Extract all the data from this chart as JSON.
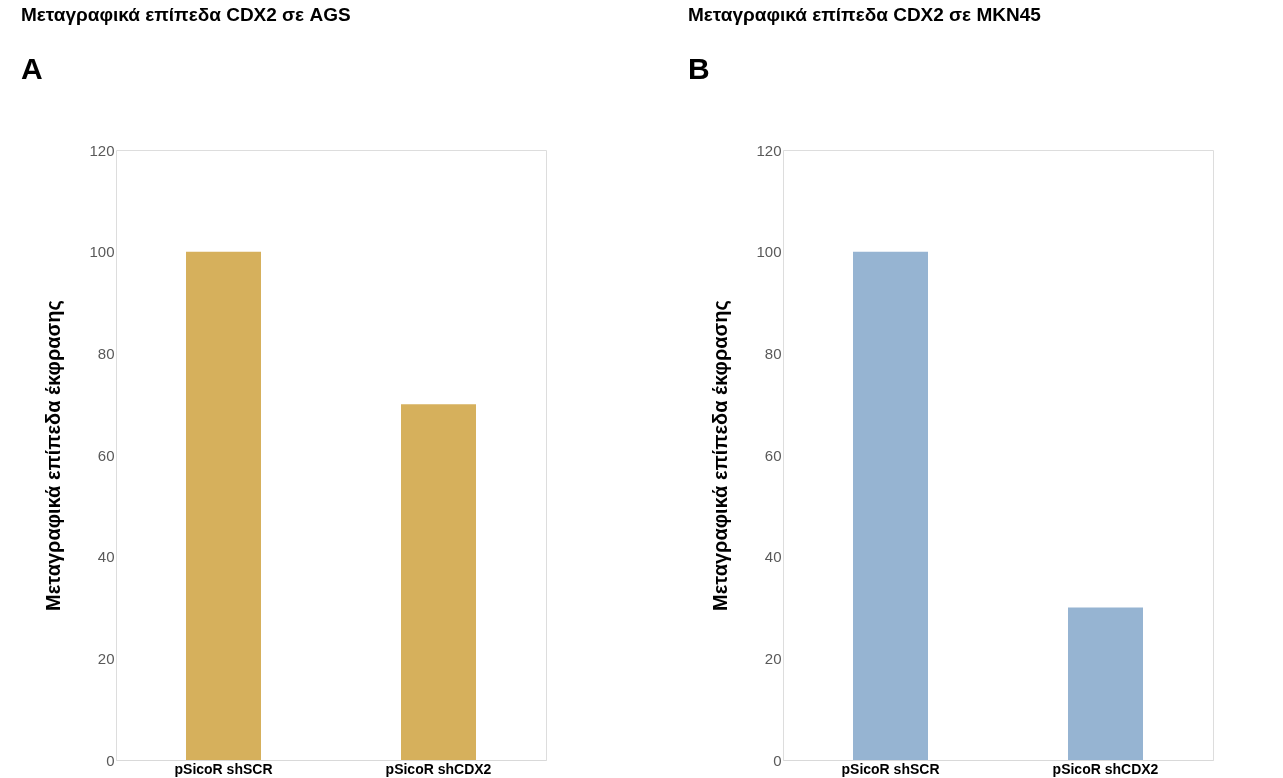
{
  "chart_data": [
    {
      "type": "bar",
      "title": "Μεταγραφικά επίπεδα CDX2 σε AGS",
      "ylabel": "Μεταγραφικά επίπεδα έκφρασης",
      "categories": [
        "pSicoR shSCR",
        "pSicoR shCDX2"
      ],
      "values": [
        100,
        70
      ],
      "color": "#d6b05c",
      "ylim": [
        0,
        120
      ],
      "yticks": [
        0,
        20,
        40,
        60,
        80,
        100,
        120
      ],
      "grid": false,
      "annotations": [
        "A"
      ]
    },
    {
      "type": "bar",
      "title": "Μεταγραφικά επίπεδα CDX2 σε MKN45",
      "ylabel": "Μεταγραφικά επίπεδα έκφρασης",
      "categories": [
        "pSicoR shSCR",
        "pSicoR shCDX2"
      ],
      "values": [
        100,
        30
      ],
      "color": "#96b4d2",
      "ylim": [
        0,
        120
      ],
      "yticks": [
        0,
        20,
        40,
        60,
        80,
        100,
        120
      ],
      "grid": false,
      "annotations": [
        "B"
      ]
    }
  ]
}
